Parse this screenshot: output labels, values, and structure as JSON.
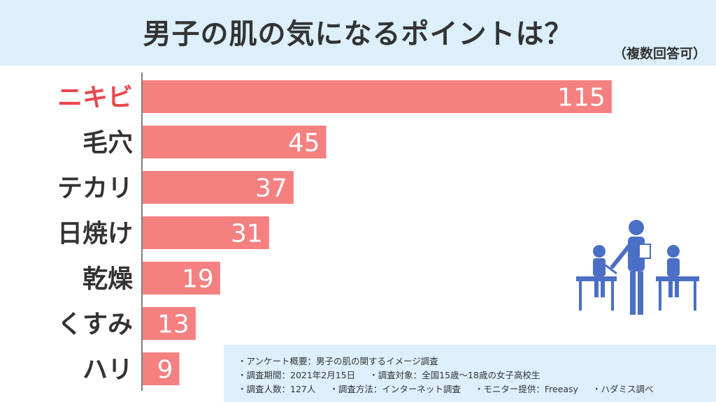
{
  "title": "男子の肌の気になるポイントは？",
  "subtitle": "（複数回答可）",
  "colors": {
    "bar": "#f58080",
    "highlight_label": "#e8484d",
    "label": "#333333",
    "value_label": "#ffffff",
    "illustration": "#4a6fc4"
  },
  "chart_data": {
    "type": "bar",
    "orientation": "horizontal",
    "categories": [
      "ニキビ",
      "毛穴",
      "テカリ",
      "日焼け",
      "乾燥",
      "くすみ",
      "ハリ"
    ],
    "values": [
      115,
      45,
      37,
      31,
      19,
      13,
      9
    ],
    "highlight_index": 0,
    "xlim": [
      0,
      120
    ],
    "grid": false,
    "legend": "none"
  },
  "notes": {
    "line1": [
      "・アンケート概要：男子の肌の関するイメージ調査"
    ],
    "line2": [
      "・調査期間：2021年2月15日",
      "・調査対象：全国15歳〜18歳の女子高校生"
    ],
    "line3": [
      "・調査人数：127人",
      "・調査方法：インターネット調査",
      "・モニター提供：Freeasy",
      "・ハダミス調べ"
    ]
  },
  "illustration": {
    "icon": "classroom-teacher-students-icon"
  }
}
